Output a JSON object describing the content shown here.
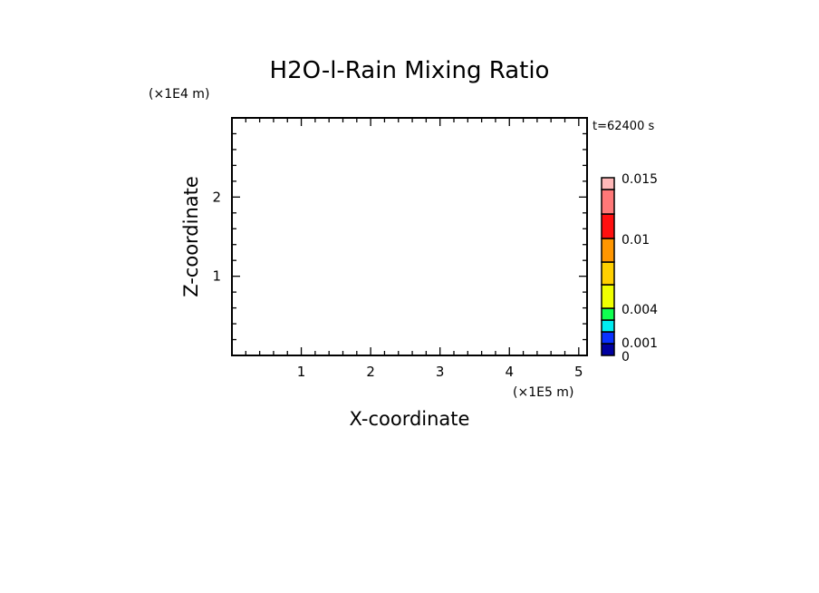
{
  "chart_data": {
    "type": "heatmap",
    "title": "H2O-l-Rain Mixing Ratio",
    "xlabel": "X-coordinate",
    "ylabel": "Z-coordinate",
    "x_scale_label": "(×1E5 m)",
    "y_scale_label": "(×1E4 m)",
    "time_label": "t=62400 s",
    "xlim": [
      0,
      5.12
    ],
    "ylim": [
      0,
      3.0
    ],
    "x_ticks": [
      "1",
      "2",
      "3",
      "4",
      "5"
    ],
    "y_ticks": [
      "1",
      "2"
    ],
    "grid": false,
    "values": [],
    "colorbar": {
      "colors": [
        "#0000a0",
        "#0a32ff",
        "#00ecf0",
        "#10ff50",
        "#f0ff00",
        "#ffd000",
        "#ff9600",
        "#ff1010",
        "#ff7878",
        "#ffb8b8"
      ],
      "tick_labels": [
        {
          "label": "0.015",
          "index": 10
        },
        {
          "label": "0.01",
          "index": 7
        },
        {
          "label": "0.004",
          "index": 4
        },
        {
          "label": "0.001",
          "index": 1
        },
        {
          "label": "0",
          "index": 0
        }
      ]
    }
  }
}
